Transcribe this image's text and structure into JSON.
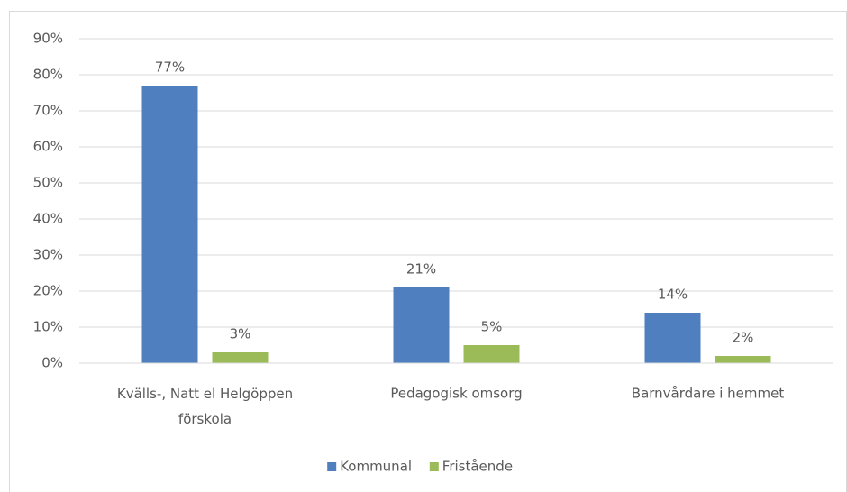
{
  "chart_data": {
    "type": "bar",
    "categories": [
      "Kvälls-, Natt el Helgöppen förskola",
      "Pedagogisk omsorg",
      "Barnvårdare i hemmet"
    ],
    "series": [
      {
        "name": "Kommunal",
        "color": "#4f7fbe",
        "values": [
          77,
          21,
          14
        ],
        "value_labels": [
          "77%",
          "21%",
          "14%"
        ]
      },
      {
        "name": "Fristående",
        "color": "#9bbb59",
        "values": [
          3,
          5,
          2
        ],
        "value_labels": [
          "3%",
          "5%",
          "2%"
        ]
      }
    ],
    "ylim": [
      0,
      90
    ],
    "yticks": [
      {
        "value": 0,
        "label": "0%"
      },
      {
        "value": 10,
        "label": "10%"
      },
      {
        "value": 20,
        "label": "20%"
      },
      {
        "value": 30,
        "label": "30%"
      },
      {
        "value": 40,
        "label": "40%"
      },
      {
        "value": 50,
        "label": "50%"
      },
      {
        "value": 60,
        "label": "60%"
      },
      {
        "value": 70,
        "label": "70%"
      },
      {
        "value": 80,
        "label": "80%"
      },
      {
        "value": 90,
        "label": "90%"
      }
    ],
    "grid": true,
    "legend": "bottom"
  }
}
